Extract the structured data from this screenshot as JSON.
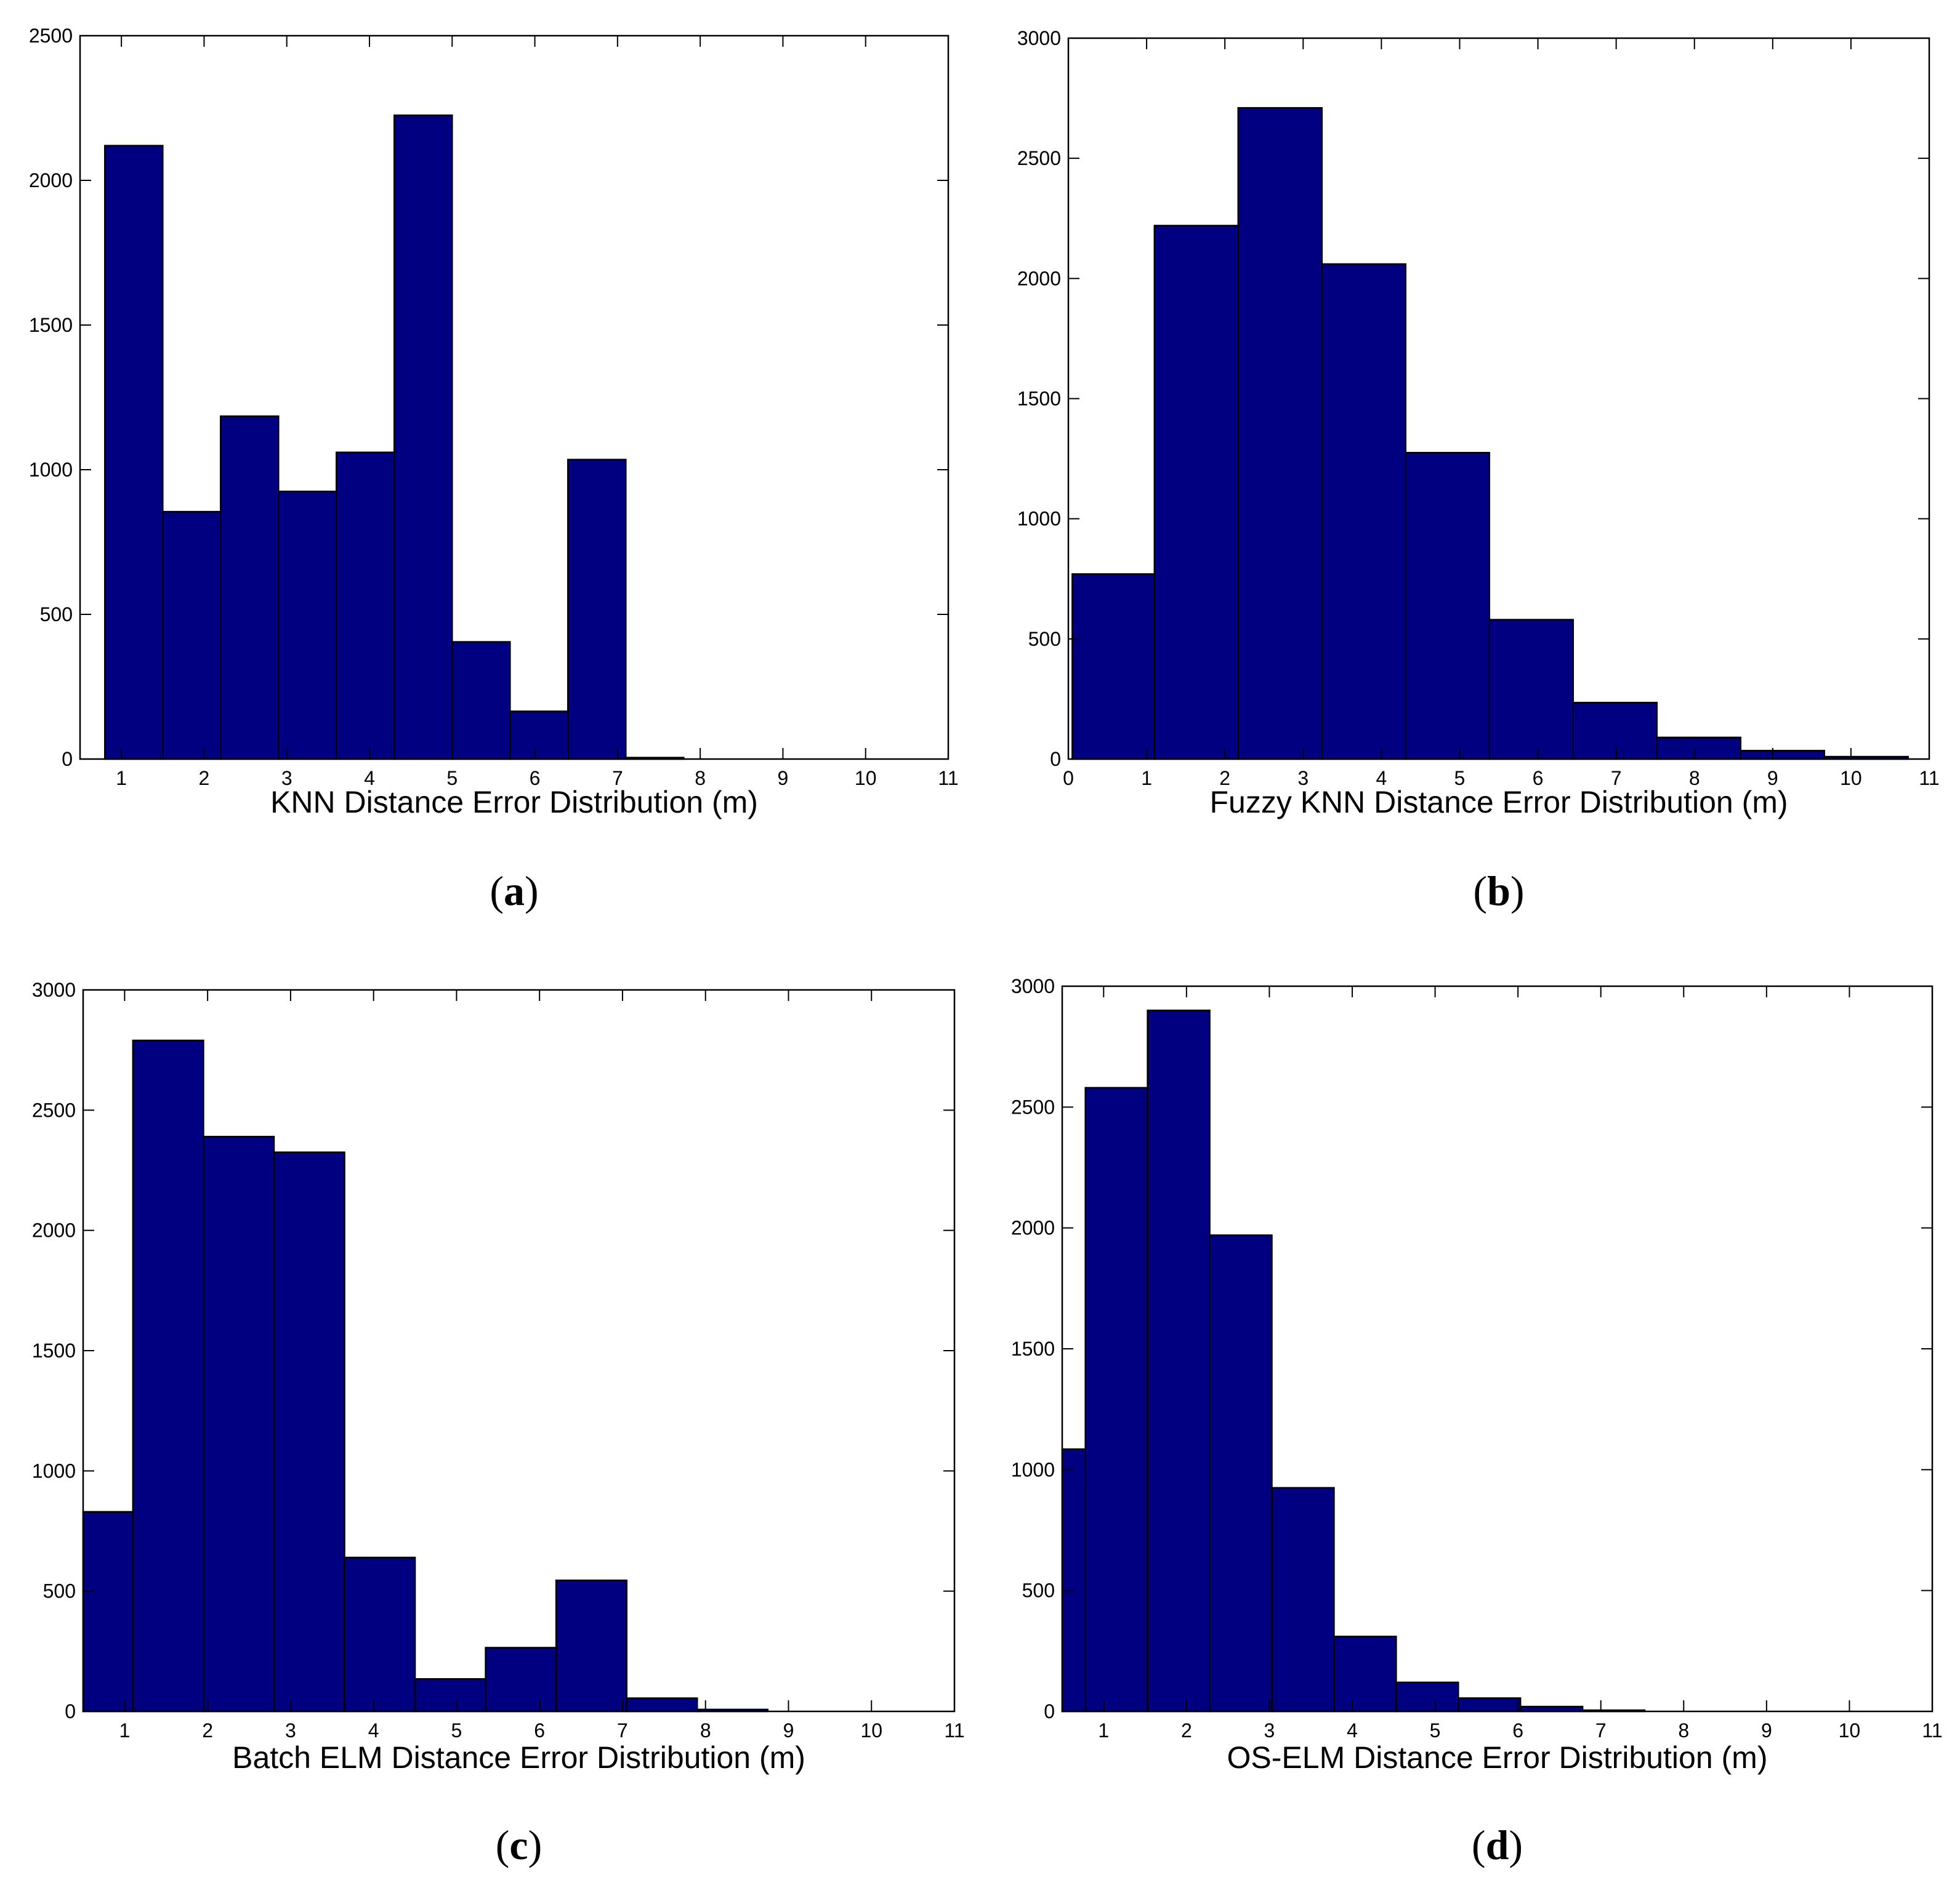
{
  "figure": {
    "colors": {
      "bar_fill": "#000080",
      "bar_edge": "#000000",
      "axes": "#000000",
      "background": "#ffffff"
    }
  },
  "chart_data": [
    {
      "id": "a",
      "type": "bar",
      "panel_label": "a",
      "xlabel": "KNN Distance Error Distribution (m)",
      "ylabel": "",
      "xlim": [
        0.5,
        11
      ],
      "ylim": [
        0,
        2500
      ],
      "xticks": [
        1,
        2,
        3,
        4,
        5,
        6,
        7,
        8,
        9,
        10,
        11
      ],
      "yticks": [
        0,
        500,
        1000,
        1500,
        2000,
        2500
      ],
      "bin_edges": [
        0.8,
        1.5,
        2.2,
        2.9,
        3.6,
        4.3,
        5.0,
        5.7,
        6.4,
        7.1,
        7.8
      ],
      "values": [
        2120,
        855,
        1185,
        925,
        1060,
        2225,
        405,
        165,
        1035,
        5
      ]
    },
    {
      "id": "b",
      "type": "bar",
      "panel_label": "b",
      "xlabel": "Fuzzy KNN Distance Error Distribution (m)",
      "ylabel": "",
      "xlim": [
        0,
        11
      ],
      "ylim": [
        0,
        3000
      ],
      "xticks": [
        0,
        1,
        2,
        3,
        4,
        5,
        6,
        7,
        8,
        9,
        10,
        11
      ],
      "yticks": [
        0,
        500,
        1000,
        1500,
        2000,
        2500,
        3000
      ],
      "bin_edges": [
        0.05,
        1.1,
        2.17,
        3.24,
        4.31,
        5.38,
        6.45,
        7.52,
        8.59,
        9.66,
        10.73
      ],
      "values": [
        770,
        2220,
        2710,
        2060,
        1275,
        580,
        235,
        90,
        35,
        10
      ]
    },
    {
      "id": "c",
      "type": "bar",
      "panel_label": "c",
      "xlabel": "Batch ELM Distance Error Distribution (m)",
      "ylabel": "",
      "xlim": [
        0.5,
        11
      ],
      "ylim": [
        0,
        3000
      ],
      "xticks": [
        1,
        2,
        3,
        4,
        5,
        6,
        7,
        8,
        9,
        10,
        11
      ],
      "yticks": [
        0,
        500,
        1000,
        1500,
        2000,
        2500,
        3000
      ],
      "bin_edges": [
        0.5,
        1.1,
        1.95,
        2.8,
        3.65,
        4.5,
        5.35,
        6.2,
        7.05,
        7.9,
        8.75
      ],
      "values": [
        830,
        2790,
        2390,
        2325,
        640,
        135,
        265,
        545,
        55,
        8
      ]
    },
    {
      "id": "d",
      "type": "bar",
      "panel_label": "d",
      "xlabel": "OS-ELM Distance Error Distribution (m)",
      "ylabel": "",
      "xlim": [
        0.5,
        11
      ],
      "ylim": [
        0,
        3000
      ],
      "xticks": [
        1,
        2,
        3,
        4,
        5,
        6,
        7,
        8,
        9,
        10,
        11
      ],
      "yticks": [
        0,
        500,
        1000,
        1500,
        2000,
        2500,
        3000
      ],
      "bin_edges": [
        0.5,
        0.78,
        1.53,
        2.28,
        3.03,
        3.78,
        4.53,
        5.28,
        6.03,
        6.78,
        7.53
      ],
      "values": [
        1085,
        2580,
        2900,
        1970,
        925,
        310,
        120,
        55,
        20,
        5
      ]
    }
  ]
}
